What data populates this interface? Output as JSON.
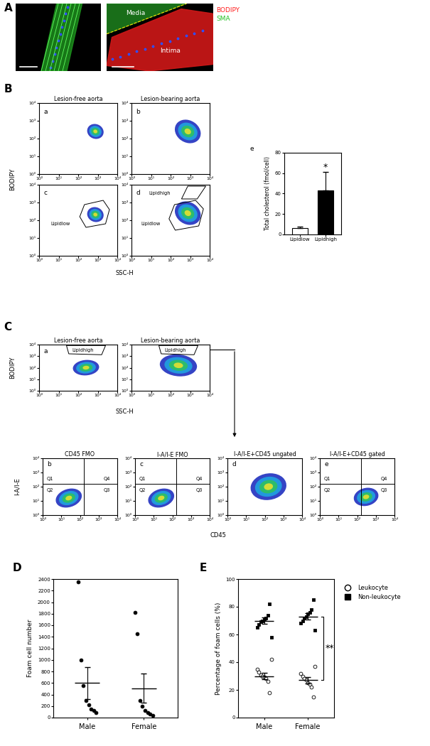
{
  "chart_data": [
    {
      "type": "image",
      "annotations": [
        "A"
      ]
    },
    {
      "type": "image",
      "annotations": [
        "Media",
        "Intima",
        "BODIPY",
        "SMA"
      ]
    },
    {
      "type": "flow",
      "title": "Lesion-free aorta",
      "annotations": [
        "B",
        "a"
      ],
      "log": true,
      "xlim": [
        1,
        10000
      ],
      "ylim": [
        1,
        10000
      ],
      "xticks": [
        {
          "value": 1,
          "label": "10⁰"
        },
        {
          "value": 10,
          "label": "10¹"
        },
        {
          "value": 100,
          "label": "10²"
        },
        {
          "value": 1000,
          "label": "10³"
        },
        {
          "value": 10000,
          "label": "10⁴"
        }
      ],
      "yticks": [
        {
          "value": 1,
          "label": "10⁰"
        },
        {
          "value": 10,
          "label": "10¹"
        },
        {
          "value": 100,
          "label": "10²"
        },
        {
          "value": 1000,
          "label": "10³"
        },
        {
          "value": 10000,
          "label": "10⁴"
        }
      ]
    },
    {
      "type": "flow",
      "title": "Lesion-bearing aorta",
      "annotations": [
        "b"
      ],
      "log": true,
      "xlim": [
        1,
        10000
      ],
      "ylim": [
        1,
        10000
      ],
      "xticks": [
        {
          "value": 1,
          "label": "10⁰"
        },
        {
          "value": 10,
          "label": "10¹"
        },
        {
          "value": 100,
          "label": "10²"
        },
        {
          "value": 1000,
          "label": "10³"
        },
        {
          "value": 10000,
          "label": "10⁴"
        }
      ],
      "yticks": [
        {
          "value": 1,
          "label": "10⁰"
        },
        {
          "value": 10,
          "label": "10¹"
        },
        {
          "value": 100,
          "label": "10²"
        },
        {
          "value": 1000,
          "label": "10³"
        },
        {
          "value": 10000,
          "label": "10⁴"
        }
      ]
    },
    {
      "type": "flow",
      "annotations": [
        "c",
        "Lipidlow"
      ],
      "x_label": "SSC-H",
      "y_label": "BODIPY",
      "log": true,
      "xlim": [
        1,
        10000
      ],
      "ylim": [
        1,
        10000
      ],
      "xticks": [
        {
          "value": 1,
          "label": "10⁰"
        },
        {
          "value": 10,
          "label": "10¹"
        },
        {
          "value": 100,
          "label": "10²"
        },
        {
          "value": 1000,
          "label": "10³"
        },
        {
          "value": 10000,
          "label": "10⁴"
        }
      ],
      "yticks": [
        {
          "value": 1,
          "label": "10⁰"
        },
        {
          "value": 10,
          "label": "10¹"
        },
        {
          "value": 100,
          "label": "10²"
        },
        {
          "value": 1000,
          "label": "10³"
        },
        {
          "value": 10000,
          "label": "10⁴"
        }
      ]
    },
    {
      "type": "flow",
      "annotations": [
        "d",
        "Lipidhigh",
        "Lipidlow"
      ],
      "log": true,
      "xlim": [
        1,
        10000
      ],
      "ylim": [
        1,
        10000
      ],
      "xticks": [
        {
          "value": 1,
          "label": "10⁰"
        },
        {
          "value": 10,
          "label": "10¹"
        },
        {
          "value": 100,
          "label": "10²"
        },
        {
          "value": 1000,
          "label": "10³"
        },
        {
          "value": 10000,
          "label": "10⁴"
        }
      ],
      "yticks": [
        {
          "value": 1,
          "label": "10⁰"
        },
        {
          "value": 10,
          "label": "10¹"
        },
        {
          "value": 100,
          "label": "10²"
        },
        {
          "value": 1000,
          "label": "10³"
        },
        {
          "value": 10000,
          "label": "10⁴"
        }
      ]
    },
    {
      "type": "bar",
      "annotations": [
        "e",
        "*"
      ],
      "y_label": "Total cholesterol (fmol/cell)",
      "categories": [
        "Lipidlow",
        "Lipidhigh"
      ],
      "values": [
        6,
        43
      ],
      "errors": [
        1.5,
        18
      ],
      "colors": [
        "#ffffff",
        "#000000"
      ],
      "ylim": [
        0,
        80
      ],
      "yticks": [
        0,
        20,
        40,
        60,
        80
      ]
    },
    {
      "type": "flow",
      "title": "Lesion-free aorta",
      "annotations": [
        "C",
        "a",
        "Lipidhigh"
      ],
      "x_label": "SSC-H",
      "y_label": "BODIPY",
      "log": true,
      "xlim": [
        1,
        10000
      ],
      "ylim": [
        1,
        10000
      ],
      "xticks": [
        {
          "value": 1,
          "label": "10⁰"
        },
        {
          "value": 10,
          "label": "10¹"
        },
        {
          "value": 100,
          "label": "10²"
        },
        {
          "value": 1000,
          "label": "10³"
        },
        {
          "value": 10000,
          "label": "10⁴"
        }
      ],
      "yticks": [
        {
          "value": 1,
          "label": "10⁰"
        },
        {
          "value": 10,
          "label": "10¹"
        },
        {
          "value": 100,
          "label": "10²"
        },
        {
          "value": 1000,
          "label": "10³"
        },
        {
          "value": 10000,
          "label": "10⁴"
        }
      ]
    },
    {
      "type": "flow",
      "title": "Lesion-bearing aorta",
      "annotations": [
        "Lipidhigh"
      ],
      "log": true,
      "xlim": [
        1,
        10000
      ],
      "ylim": [
        1,
        10000
      ],
      "xticks": [
        {
          "value": 1,
          "label": "10⁰"
        },
        {
          "value": 10,
          "label": "10¹"
        },
        {
          "value": 100,
          "label": "10²"
        },
        {
          "value": 1000,
          "label": "10³"
        },
        {
          "value": 10000,
          "label": "10⁴"
        }
      ],
      "yticks": [
        {
          "value": 1,
          "label": "10⁰"
        },
        {
          "value": 10,
          "label": "10¹"
        },
        {
          "value": 100,
          "label": "10²"
        },
        {
          "value": 1000,
          "label": "10³"
        },
        {
          "value": 10000,
          "label": "10⁴"
        }
      ]
    },
    {
      "type": "flow",
      "title": "CD45 FMO",
      "annotations": [
        "b",
        "Q1",
        "Q2",
        "Q3",
        "Q4"
      ],
      "y_label": "I-A/I-E",
      "log": true,
      "xlim": [
        1,
        10000
      ],
      "ylim": [
        1,
        10000
      ],
      "xticks": [
        {
          "value": 1,
          "label": "10⁰"
        },
        {
          "value": 10,
          "label": "10¹"
        },
        {
          "value": 100,
          "label": "10²"
        },
        {
          "value": 1000,
          "label": "10³"
        },
        {
          "value": 10000,
          "label": "10⁴"
        }
      ],
      "yticks": [
        {
          "value": 1,
          "label": "10⁰"
        },
        {
          "value": 10,
          "label": "10¹"
        },
        {
          "value": 100,
          "label": "10²"
        },
        {
          "value": 1000,
          "label": "10³"
        },
        {
          "value": 10000,
          "label": "10⁴"
        }
      ]
    },
    {
      "type": "flow",
      "title": "I-A/I-E FMO",
      "annotations": [
        "c",
        "Q1",
        "Q2",
        "Q3",
        "Q4"
      ],
      "x_label": "CD45",
      "log": true,
      "xlim": [
        1,
        10000
      ],
      "ylim": [
        1,
        10000
      ],
      "xticks": [
        {
          "value": 1,
          "label": "10⁰"
        },
        {
          "value": 10,
          "label": "10¹"
        },
        {
          "value": 100,
          "label": "10²"
        },
        {
          "value": 1000,
          "label": "10³"
        },
        {
          "value": 10000,
          "label": "10⁴"
        }
      ],
      "yticks": [
        {
          "value": 1,
          "label": "10⁰"
        },
        {
          "value": 10,
          "label": "10¹"
        },
        {
          "value": 100,
          "label": "10²"
        },
        {
          "value": 1000,
          "label": "10³"
        },
        {
          "value": 10000,
          "label": "10⁴"
        }
      ]
    },
    {
      "type": "flow",
      "title": "I-A/I-E+CD45 ungated",
      "annotations": [
        "d"
      ],
      "log": true,
      "xlim": [
        1,
        10000
      ],
      "ylim": [
        1,
        10000
      ],
      "xticks": [
        {
          "value": 1,
          "label": "10⁰"
        },
        {
          "value": 10,
          "label": "10¹"
        },
        {
          "value": 100,
          "label": "10²"
        },
        {
          "value": 1000,
          "label": "10³"
        },
        {
          "value": 10000,
          "label": "10⁴"
        }
      ],
      "yticks": [
        {
          "value": 1,
          "label": "10⁰"
        },
        {
          "value": 10,
          "label": "10¹"
        },
        {
          "value": 100,
          "label": "10²"
        },
        {
          "value": 1000,
          "label": "10³"
        },
        {
          "value": 10000,
          "label": "10⁴"
        }
      ]
    },
    {
      "type": "flow",
      "title": "I-A/I-E+CD45 gated",
      "annotations": [
        "e",
        "Q1",
        "Q2",
        "Q3",
        "Q4"
      ],
      "log": true,
      "xlim": [
        1,
        10000
      ],
      "ylim": [
        1,
        10000
      ],
      "xticks": [
        {
          "value": 1,
          "label": "10⁰"
        },
        {
          "value": 10,
          "label": "10¹"
        },
        {
          "value": 100,
          "label": "10²"
        },
        {
          "value": 1000,
          "label": "10³"
        },
        {
          "value": 10000,
          "label": "10⁴"
        }
      ],
      "yticks": [
        {
          "value": 1,
          "label": "10⁰"
        },
        {
          "value": 10,
          "label": "10¹"
        },
        {
          "value": 100,
          "label": "10²"
        },
        {
          "value": 1000,
          "label": "10³"
        },
        {
          "value": 10000,
          "label": "10⁴"
        }
      ]
    },
    {
      "type": "scatter",
      "annotations": [
        "D"
      ],
      "y_label": "Foam cell number",
      "categories": [
        "Male",
        "Female"
      ],
      "values": [
        [
          2350,
          1000,
          560,
          300,
          220,
          150,
          120,
          90
        ],
        [
          1820,
          1450,
          300,
          200,
          120,
          90,
          60,
          40
        ]
      ],
      "means": [
        600,
        510
      ],
      "errors": [
        275,
        250
      ],
      "color": "#000000",
      "marker": "circle",
      "ylim": [
        0,
        2400
      ],
      "yticks": [
        0,
        200,
        400,
        600,
        800,
        1000,
        1200,
        1400,
        1600,
        1800,
        2000,
        2200,
        2400
      ]
    },
    {
      "type": "scatter",
      "annotations": [
        "E",
        "**"
      ],
      "y_label": "Percentage of foam cells (%)",
      "categories": [
        "Male",
        "Female"
      ],
      "legend": "right",
      "series": [
        {
          "name": "Leukocyte",
          "color": "#ffffff",
          "marker": "circle",
          "values": [
            [
              35,
              33,
              31,
              30,
              29,
              28,
              26,
              18,
              42
            ],
            [
              32,
              30,
              28,
              27,
              25,
              24,
              22,
              15,
              37
            ]
          ],
          "means": [
            30,
            27
          ],
          "errors": [
            2.5,
            2.3
          ]
        },
        {
          "name": "Non-leukocyte",
          "color": "#000000",
          "marker": "square",
          "values": [
            [
              65,
              67,
              69,
              70,
              71,
              72,
              74,
              82,
              58
            ],
            [
              68,
              70,
              72,
              73,
              75,
              76,
              78,
              85,
              63
            ]
          ],
          "means": [
            70,
            73
          ],
          "errors": [
            2.5,
            2.3
          ]
        }
      ],
      "ylim": [
        0,
        100
      ],
      "yticks": [
        0,
        20,
        40,
        60,
        80,
        100
      ]
    }
  ]
}
